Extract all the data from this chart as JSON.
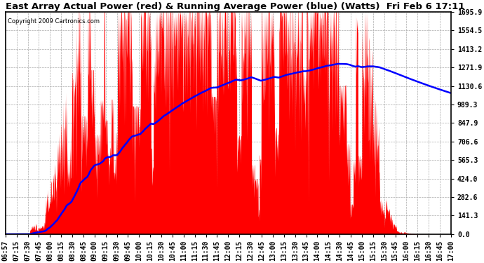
{
  "title": "East Array Actual Power (red) & Running Average Power (blue) (Watts)  Fri Feb 6 17:11",
  "copyright": "Copyright 2009 Cartronics.com",
  "y_ticks": [
    0.0,
    141.3,
    282.6,
    424.0,
    565.3,
    706.6,
    847.9,
    989.3,
    1130.6,
    1271.9,
    1413.2,
    1554.5,
    1695.9
  ],
  "x_labels": [
    "06:57",
    "07:15",
    "07:30",
    "07:45",
    "08:00",
    "08:15",
    "08:30",
    "08:45",
    "09:00",
    "09:15",
    "09:30",
    "09:45",
    "10:00",
    "10:15",
    "10:30",
    "10:45",
    "11:00",
    "11:15",
    "11:30",
    "11:45",
    "12:00",
    "12:15",
    "12:30",
    "12:45",
    "13:00",
    "13:15",
    "13:30",
    "13:45",
    "14:00",
    "14:15",
    "14:30",
    "14:45",
    "15:00",
    "15:15",
    "15:30",
    "15:45",
    "16:00",
    "16:15",
    "16:30",
    "16:45",
    "17:00"
  ],
  "background_color": "#ffffff",
  "plot_bg_color": "#ffffff",
  "grid_color": "#aaaaaa",
  "fill_color": "#ff0000",
  "line_color": "#0000ff",
  "title_fontsize": 9.5,
  "tick_fontsize": 7,
  "ylim": [
    0,
    1695.9
  ],
  "peak_power": 1600,
  "avg_peak": 1300
}
